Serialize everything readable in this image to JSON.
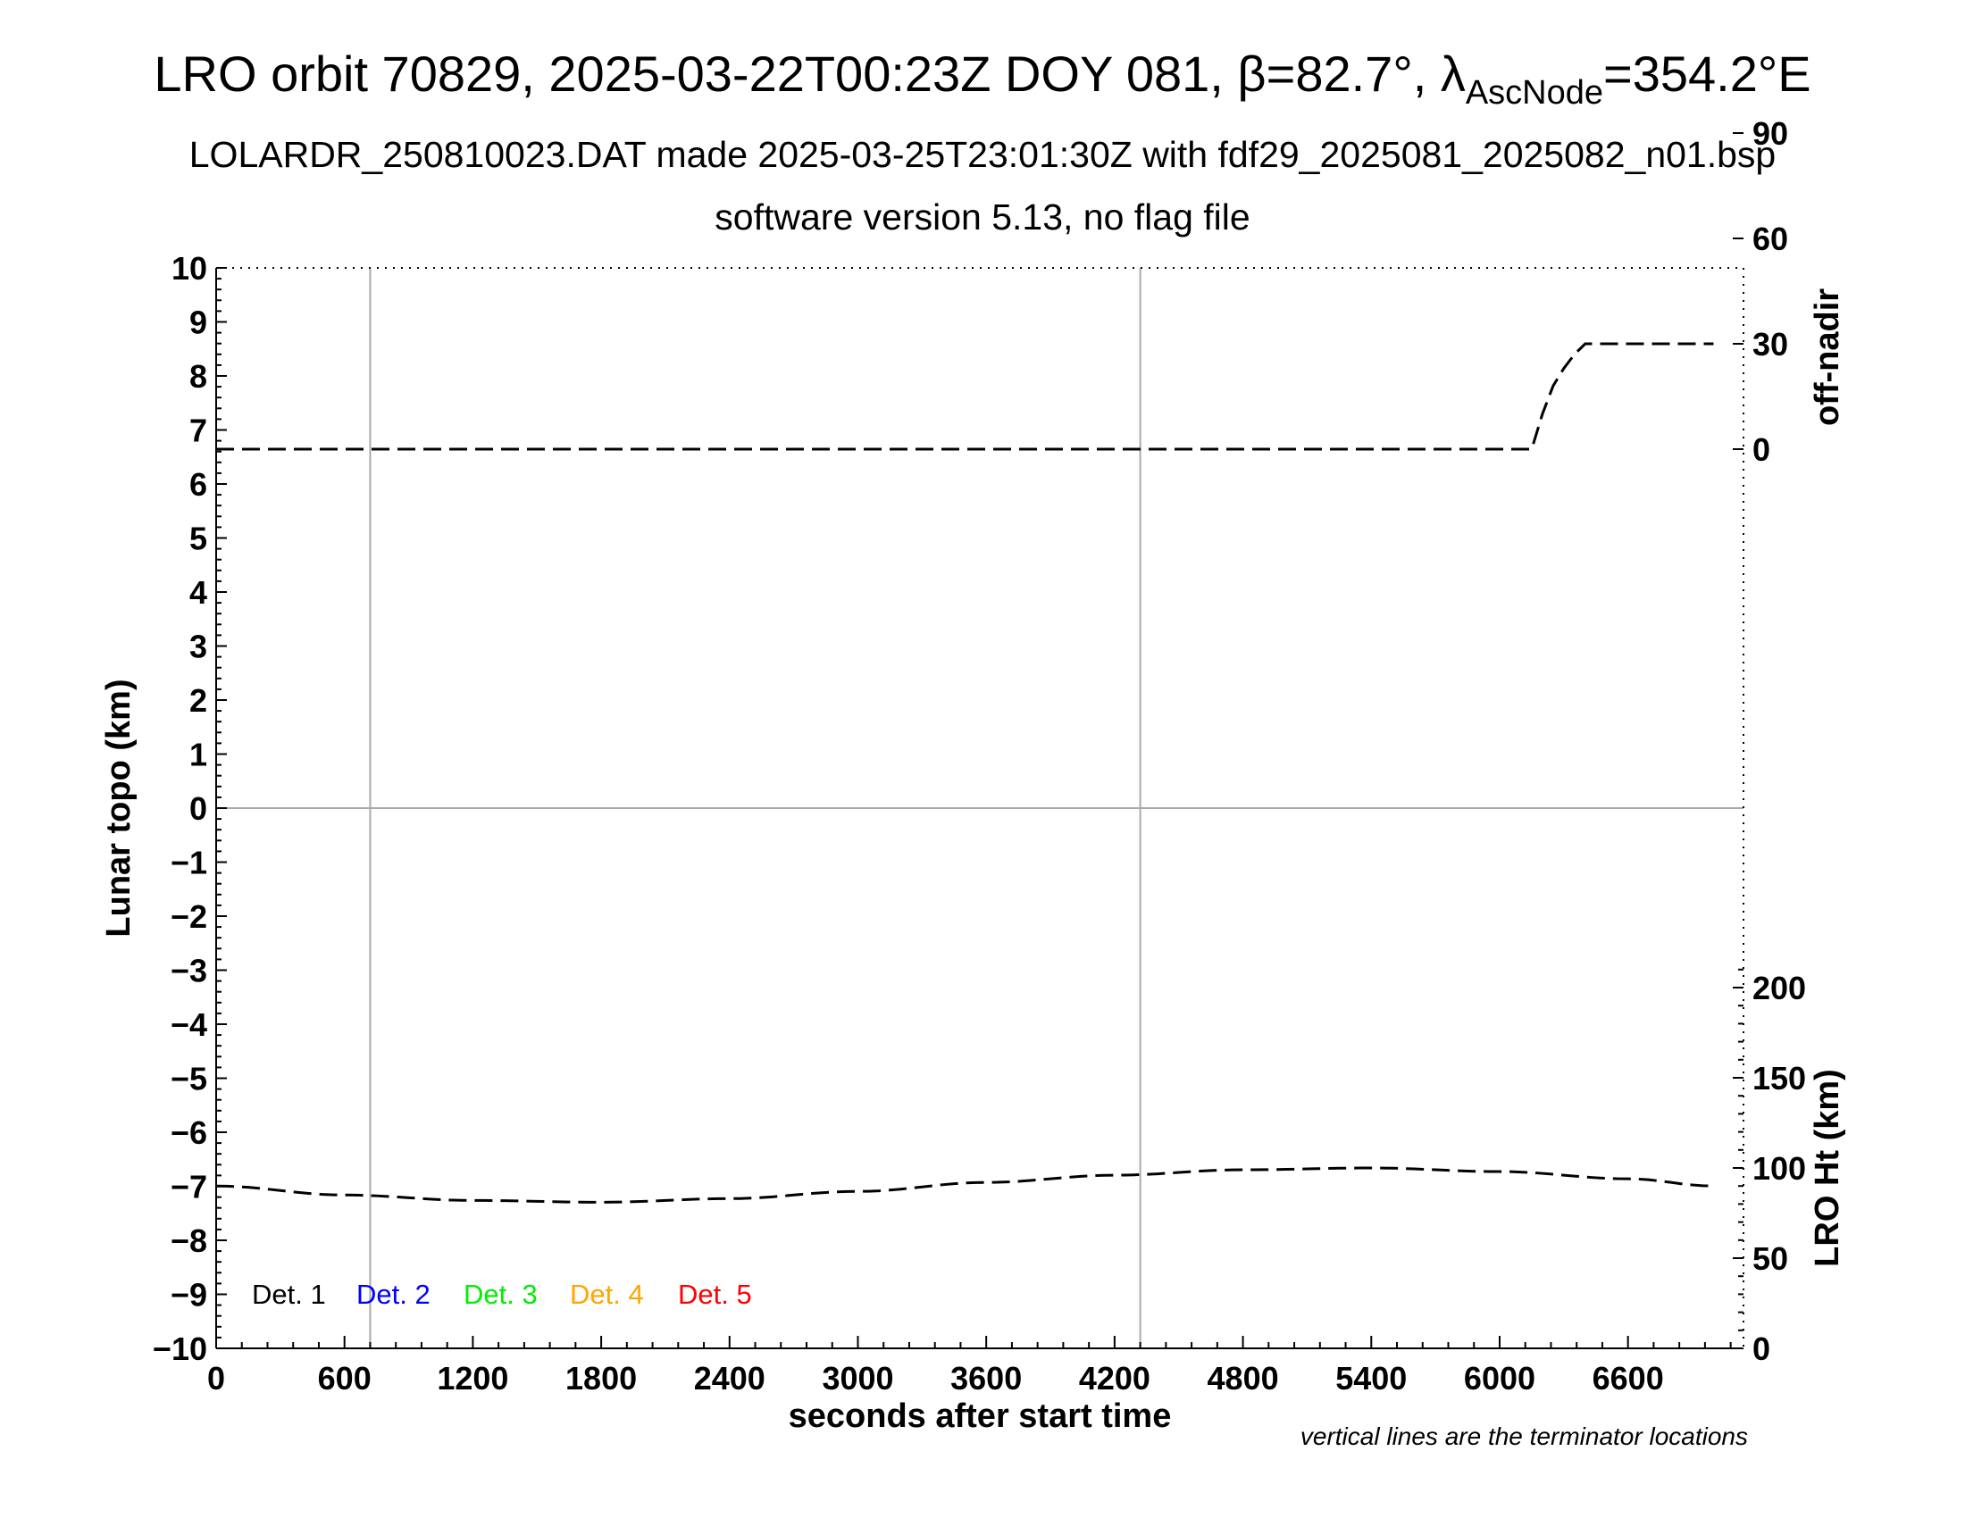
{
  "title": {
    "prefix": "LRO orbit 70829, 2025-03-22T00:23Z DOY 081, β=82.7°, λ",
    "subscript": "AscNode",
    "suffix": "=354.2°E"
  },
  "subtitle1": "LOLARDR_250810023.DAT made 2025-03-25T23:01:30Z with fdf29_2025081_2025082_n01.bsp",
  "subtitle2": "software version 5.13, no flag file",
  "note": "vertical lines are the terminator locations",
  "chart_data": {
    "type": "line",
    "xlabel": "seconds after start time",
    "xlim": [
      0,
      7140
    ],
    "xticks": [
      "0",
      "600",
      "1200",
      "1800",
      "2400",
      "3000",
      "3600",
      "4200",
      "4800",
      "5400",
      "6000",
      "6600"
    ],
    "ylabel_left": "Lunar topo (km)",
    "ylim_left": [
      -10,
      10
    ],
    "yticks_left": [
      "10",
      "9",
      "8",
      "7",
      "6",
      "5",
      "4",
      "3",
      "2",
      "1",
      "0",
      "−1",
      "−2",
      "−3",
      "−4",
      "−5",
      "−6",
      "−7",
      "−8",
      "−9",
      "−10"
    ],
    "ylabel_right_top": "off-nadir",
    "yticks_right_top": [
      "90",
      "60",
      "30",
      "0"
    ],
    "ylabel_right_bottom": "LRO Ht (km)",
    "yticks_right_bottom": [
      "200",
      "150",
      "100",
      "50",
      "0"
    ],
    "terminator_x": [
      720,
      4320
    ],
    "legend": [
      "Det. 1",
      "Det. 2",
      "Det. 3",
      "Det. 4",
      "Det. 5"
    ],
    "legend_colors": [
      "#000000",
      "#0000ff",
      "#00ee00",
      "#ffa500",
      "#ff0000"
    ],
    "series": [
      {
        "axis": "off-nadir",
        "x": [
          0,
          600,
          1200,
          1800,
          2400,
          3000,
          3600,
          4200,
          4800,
          5400,
          6000,
          6150,
          6200,
          6250,
          6300,
          6350,
          6400,
          7000
        ],
        "values": [
          0,
          0,
          0,
          0,
          0,
          0,
          0,
          0,
          0,
          0,
          0,
          0,
          10,
          18,
          23,
          27,
          30,
          30
        ]
      },
      {
        "axis": "LRO Ht (km)",
        "x": [
          0,
          600,
          1200,
          1800,
          2400,
          3000,
          3600,
          4200,
          4800,
          5400,
          6000,
          6600,
          7000
        ],
        "values": [
          90,
          85,
          82,
          81,
          83,
          87,
          92,
          96,
          99,
          100,
          98,
          94,
          90
        ]
      }
    ]
  }
}
